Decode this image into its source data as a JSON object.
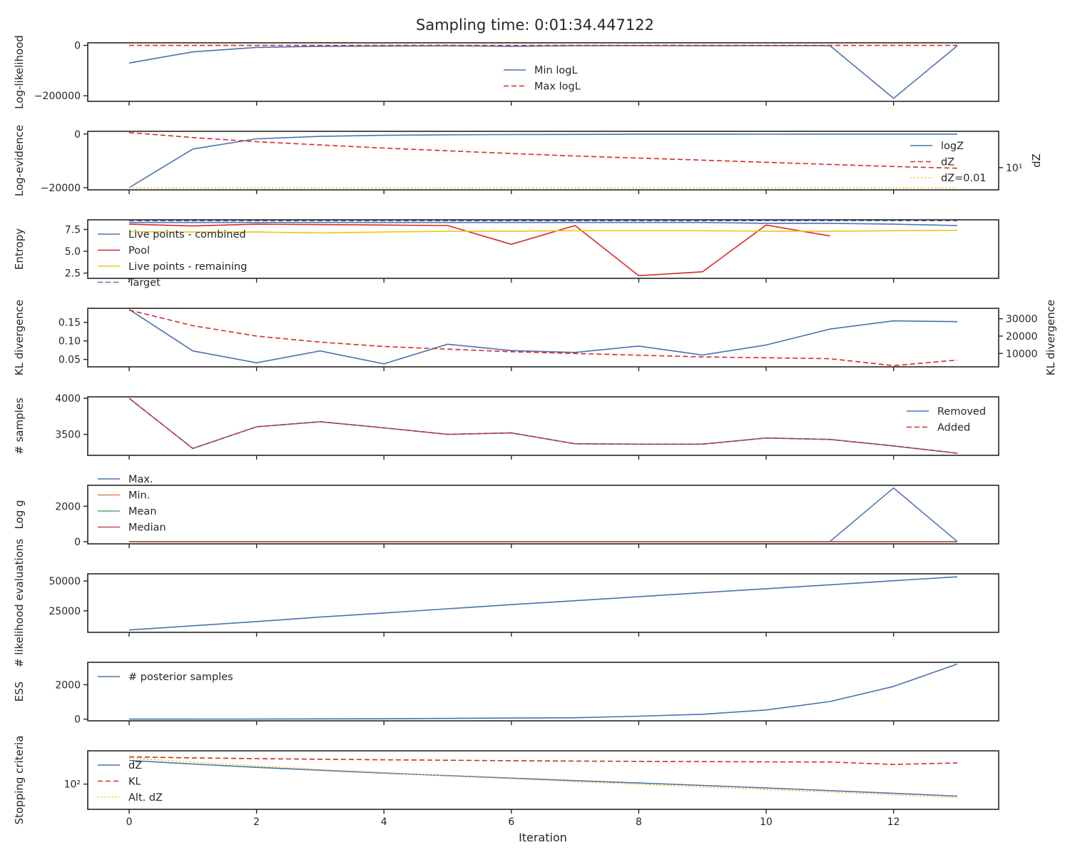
{
  "title": "Sampling time: 0:01:34.447122",
  "chart_data": {
    "type": "line",
    "xlabel": "Iteration",
    "x": [
      0,
      1,
      2,
      3,
      4,
      5,
      6,
      7,
      8,
      9,
      10,
      11,
      12,
      13
    ],
    "xticks": [
      0,
      2,
      4,
      6,
      8,
      10,
      12
    ],
    "xtick_labels": [
      "0",
      "2",
      "4",
      "6",
      "8",
      "10",
      "12"
    ],
    "xlim": [
      -0.65,
      13.65
    ],
    "panels": [
      {
        "ylabel": "Log-likelihood",
        "ylim": [
          -222000,
          10000
        ],
        "yticks": [
          0,
          -200000
        ],
        "ytick_labels": [
          "0",
          "−200000"
        ],
        "legend": "upper-center",
        "series": [
          {
            "name": "Min logL",
            "color": "#4c72b0",
            "dash": "solid",
            "values": [
              -70000,
              -26000,
              -8000,
              -4000,
              -3000,
              -2000,
              -4000,
              -1500,
              -1000,
              -1500,
              -1000,
              -1000,
              -210000,
              -1500
            ]
          },
          {
            "name": "Max logL",
            "color": "#d62a28",
            "dash": "dashed",
            "values": [
              -200,
              -200,
              -200,
              -200,
              -200,
              -200,
              -200,
              -200,
              -200,
              -200,
              -200,
              -200,
              -200,
              -200
            ]
          }
        ]
      },
      {
        "ylabel": "Log-evidence",
        "ylim": [
          -20800,
          1000
        ],
        "yticks": [
          0,
          -20000
        ],
        "ytick_labels": [
          "0",
          "−20000"
        ],
        "right_ylabel": "dZ",
        "right_scale": "log",
        "right_ylim": [
          1.6,
          200
        ],
        "right_ytick_values": [
          10
        ],
        "right_ytick_labels": [
          "10¹"
        ],
        "legend": "right",
        "series": [
          {
            "name": "logZ",
            "color": "#4c72b0",
            "dash": "solid",
            "axis": "left",
            "values": [
              -20000,
              -5600,
              -1800,
              -900,
              -500,
              -300,
              -200,
              -150,
              -100,
              -80,
              -60,
              -50,
              -40,
              -30
            ]
          },
          {
            "name": "dZ",
            "color": "#d62a28",
            "dash": "dashed",
            "axis": "right",
            "values": [
              180,
              120,
              85,
              65,
              50,
              40,
              32,
              26,
              22,
              18.5,
              15.5,
              13,
              11,
              9.5
            ]
          },
          {
            "name": "dZ=0.01",
            "color": "#f0c419",
            "dash": "dotted",
            "axis": "left",
            "values": [
              -20000,
              -20000,
              -20000,
              -20000,
              -20000,
              -20000,
              -20000,
              -20000,
              -20000,
              -20000,
              -20000,
              -20000,
              -20000,
              -20000
            ]
          }
        ]
      },
      {
        "ylabel": "Entropy",
        "ylim": [
          1.9,
          8.6
        ],
        "yticks": [
          2.5,
          5.0,
          7.5
        ],
        "ytick_labels": [
          "2.5",
          "5.0",
          "7.5"
        ],
        "legend": "upper-left",
        "series": [
          {
            "name": "Live points - combined",
            "color": "#4c72b0",
            "dash": "solid",
            "values": [
              8.3,
              8.3,
              8.3,
              8.3,
              8.3,
              8.3,
              8.3,
              8.3,
              8.3,
              8.3,
              8.2,
              8.2,
              8.1,
              7.95
            ]
          },
          {
            "name": "Pool",
            "color": "#d62a28",
            "dash": "solid",
            "values": [
              8.1,
              7.9,
              8.1,
              8.05,
              8.0,
              7.95,
              5.8,
              7.95,
              2.2,
              2.65,
              8.0,
              6.75,
              null,
              null
            ]
          },
          {
            "name": "Live points - remaining",
            "color": "#f0c419",
            "dash": "solid",
            "values": [
              7.25,
              7.2,
              7.2,
              7.1,
              7.2,
              7.3,
              7.3,
              7.35,
              7.35,
              7.35,
              7.3,
              7.3,
              7.35,
              7.4
            ]
          },
          {
            "name": "Target",
            "color": "#4c72b0",
            "dash": "dashed",
            "values": [
              8.5,
              8.5,
              8.5,
              8.5,
              8.5,
              8.5,
              8.5,
              8.5,
              8.5,
              8.5,
              8.5,
              8.5,
              8.5,
              8.5
            ]
          }
        ]
      },
      {
        "ylabel": "KL divergence",
        "ylim": [
          0.03,
          0.188
        ],
        "yticks": [
          0.05,
          0.1,
          0.15
        ],
        "ytick_labels": [
          "0.05",
          "0.10",
          "0.15"
        ],
        "right_ylabel": "KL divergence",
        "right_scale": "linear",
        "right_ylim": [
          2300,
          36000
        ],
        "right_ytick_values": [
          10000,
          20000,
          30000
        ],
        "right_ytick_labels": [
          "10000",
          "20000",
          "30000"
        ],
        "legend": "none",
        "series": [
          {
            "name": "",
            "color": "#4c72b0",
            "dash": "solid",
            "axis": "left",
            "values": [
              0.185,
              0.073,
              0.041,
              0.073,
              0.038,
              0.091,
              0.074,
              0.069,
              0.086,
              0.062,
              0.089,
              0.132,
              0.154,
              0.152
            ]
          },
          {
            "name": "",
            "color": "#d62a28",
            "dash": "dashed",
            "axis": "right",
            "values": [
              35000,
              26000,
              20000,
              16500,
              14000,
              12500,
              11000,
              10000,
              9000,
              8000,
              7500,
              7000,
              3000,
              6200
            ]
          }
        ]
      },
      {
        "ylabel": "# samples",
        "ylim": [
          3210,
          4020
        ],
        "yticks": [
          3500,
          4000
        ],
        "ytick_labels": [
          "3500",
          "4000"
        ],
        "legend": "upper-right",
        "series": [
          {
            "name": "Removed",
            "color": "#4c72b0",
            "dash": "solid",
            "values": [
              4000,
              3305,
              3605,
              3675,
              3590,
              3500,
              3520,
              3370,
              3365,
              3365,
              3450,
              3430,
              3340,
              3240
            ]
          },
          {
            "name": "Added",
            "color": "#d62a28",
            "dash": "dashed",
            "values": [
              4000,
              3305,
              3605,
              3675,
              3590,
              3500,
              3520,
              3370,
              3365,
              3365,
              3450,
              3430,
              3340,
              3240
            ]
          }
        ]
      },
      {
        "ylabel": "Log g",
        "ylim": [
          -120,
          3180
        ],
        "yticks": [
          0,
          2000
        ],
        "ytick_labels": [
          "0",
          "2000"
        ],
        "legend": "upper-left",
        "series": [
          {
            "name": "Max.",
            "color": "#4c72b0",
            "dash": "solid",
            "values": [
              10,
              10,
              10,
              10,
              10,
              10,
              10,
              10,
              10,
              10,
              10,
              10,
              3030,
              10
            ]
          },
          {
            "name": "Min.",
            "color": "#dd8452",
            "dash": "solid",
            "values": [
              0,
              0,
              0,
              0,
              0,
              0,
              0,
              0,
              0,
              0,
              0,
              0,
              0,
              0
            ]
          },
          {
            "name": "Mean",
            "color": "#55a868",
            "dash": "solid",
            "values": [
              3,
              3,
              3,
              3,
              3,
              3,
              3,
              3,
              3,
              3,
              3,
              3,
              3,
              3
            ]
          },
          {
            "name": "Median",
            "color": "#c44e52",
            "dash": "solid",
            "values": [
              2,
              2,
              2,
              2,
              2,
              2,
              2,
              2,
              2,
              2,
              2,
              2,
              2,
              2
            ]
          }
        ]
      },
      {
        "ylabel": "# likelihood evaluations",
        "ylim": [
          7000,
          56000
        ],
        "yticks": [
          25000,
          50000
        ],
        "ytick_labels": [
          "25000",
          "50000"
        ],
        "legend": "none",
        "series": [
          {
            "name": "",
            "color": "#4c72b0",
            "dash": "solid",
            "values": [
              9000,
              12500,
              16000,
              19800,
              23200,
              26700,
              30200,
              33500,
              36800,
              40200,
              43500,
              46800,
              50200,
              53500
            ]
          }
        ]
      },
      {
        "ylabel": "ESS",
        "ylim": [
          -100,
          3300
        ],
        "yticks": [
          0,
          2000
        ],
        "ytick_labels": [
          "0",
          "2000"
        ],
        "legend": "upper-left",
        "series": [
          {
            "name": "# posterior samples",
            "color": "#4c72b0",
            "dash": "solid",
            "values": [
              0,
              0,
              5,
              10,
              20,
              40,
              60,
              80,
              170,
              280,
              530,
              1020,
              1900,
              3200
            ]
          }
        ]
      },
      {
        "ylabel": "Stopping criteria",
        "scale": "log",
        "ylim": [
          1.4,
          28000
        ],
        "yticks": [
          100
        ],
        "ytick_labels": [
          "10²"
        ],
        "legend": "upper-left",
        "series": [
          {
            "name": "dZ",
            "color": "#4c72b0",
            "dash": "solid",
            "values": [
              5500,
              3000,
              1700,
              1050,
              650,
              420,
              275,
              180,
              120,
              80,
              52,
              33,
              21,
              13
            ]
          },
          {
            "name": "KL",
            "color": "#d62a28",
            "dash": "dashed",
            "values": [
              10000,
              8500,
              7400,
              6700,
              6100,
              5700,
              5200,
              4900,
              4700,
              4500,
              4300,
              4200,
              2800,
              3600
            ]
          },
          {
            "name": "Alt. dZ",
            "color": "#f0c419",
            "dash": "dotted",
            "values": [
              8000,
              4200,
              2200,
              1200,
              700,
              400,
              250,
              150,
              100,
              62,
              40,
              26,
              16,
              10
            ]
          }
        ]
      }
    ]
  }
}
